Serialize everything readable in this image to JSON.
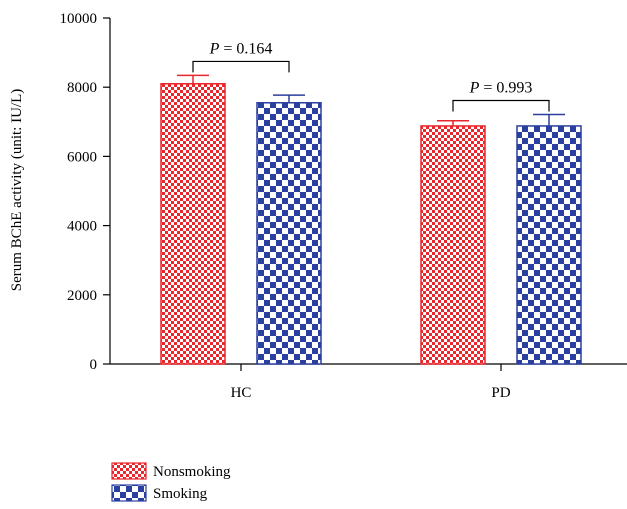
{
  "chart_data": {
    "type": "bar",
    "title": "",
    "xlabel": "",
    "ylabel": "Serum BChE activity (unit: IU/L)",
    "ylim": [
      0,
      10000
    ],
    "yticks": [
      "0",
      "2000",
      "4000",
      "6000",
      "8000",
      "10000"
    ],
    "categories": [
      "HC",
      "PD"
    ],
    "series": [
      {
        "name": "Nonsmoking",
        "values": [
          8100,
          6880
        ],
        "errors": [
          240,
          150
        ],
        "color": "#e8262b",
        "pattern": "fine-check"
      },
      {
        "name": "Smoking",
        "values": [
          7550,
          6880
        ],
        "errors": [
          220,
          330
        ],
        "color": "#2a3f9e",
        "pattern": "coarse-check"
      }
    ],
    "annotations": [
      {
        "category": "HC",
        "p_label": "P",
        "p_value": " = 0.164"
      },
      {
        "category": "PD",
        "p_label": "P",
        "p_value": " = 0.993"
      }
    ],
    "legend_position": "bottom-left"
  }
}
